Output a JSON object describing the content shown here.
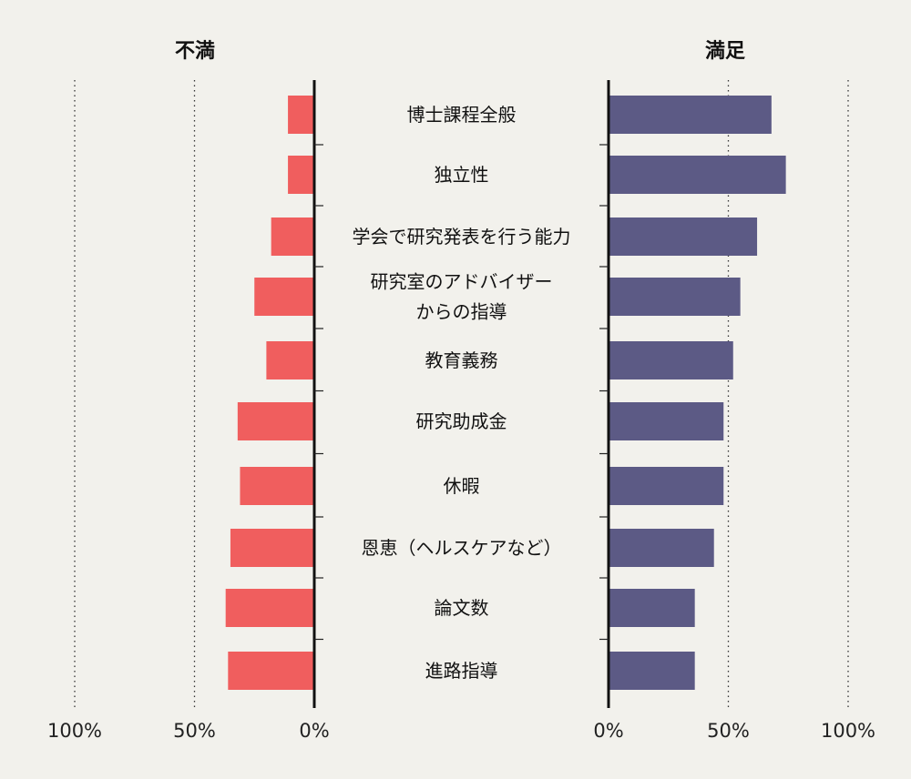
{
  "chart_data": {
    "type": "bar",
    "orientation": "horizontal-diverging",
    "categories": [
      [
        "博士課程全般"
      ],
      [
        "独立性"
      ],
      [
        "学会で研究発表を行う能力"
      ],
      [
        "研究室のアドバイザー",
        "からの指導"
      ],
      [
        "教育義務"
      ],
      [
        "研究助成金"
      ],
      [
        "休暇"
      ],
      [
        "恩恵（ヘルスケアなど）"
      ],
      [
        "論文数"
      ],
      [
        "進路指導"
      ]
    ],
    "series": [
      {
        "name": "不満",
        "color": "#f05e5e",
        "values": [
          11,
          11,
          18,
          25,
          20,
          32,
          31,
          35,
          37,
          36
        ]
      },
      {
        "name": "満足",
        "color": "#5c5a85",
        "values": [
          68,
          74,
          62,
          55,
          52,
          48,
          48,
          44,
          36,
          36
        ]
      }
    ],
    "xlim": [
      0,
      100
    ],
    "ticks": {
      "left": [
        "100%",
        "50%",
        "0%"
      ],
      "right": [
        "0%",
        "50%",
        "100%"
      ]
    },
    "gridlines": [
      50,
      100
    ],
    "grid_style": "dotted"
  }
}
